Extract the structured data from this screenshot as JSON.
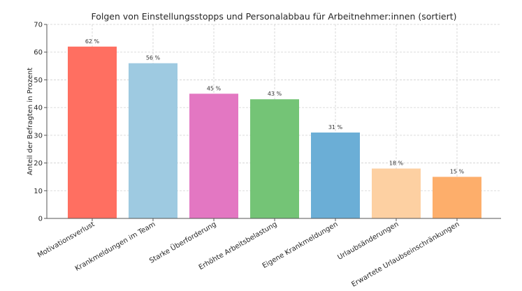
{
  "chart_data": {
    "type": "bar",
    "title": "Folgen von Einstellungsstopps und Personalabbau für Arbeitnehmer:innen (sortiert)",
    "xlabel": "",
    "ylabel": "Anteil der Befragten in Prozent",
    "ylim": [
      0,
      70
    ],
    "yticks": [
      0,
      10,
      20,
      30,
      40,
      50,
      60,
      70
    ],
    "grid": true,
    "categories": [
      "Motivationsverlust",
      "Krankmeldungen im Team",
      "Starke Überforderung",
      "Erhöhte Arbeitsbelastung",
      "Eigene Krankmeldungen",
      "Urlaubsänderungen",
      "Erwartete Urlaubseinschränkungen"
    ],
    "values": [
      62,
      56,
      45,
      43,
      31,
      18,
      15
    ],
    "data_labels": [
      "62 %",
      "56 %",
      "45 %",
      "43 %",
      "31 %",
      "18 %",
      "15 %"
    ],
    "colors": [
      "#ff6f61",
      "#9ecae1",
      "#e377c2",
      "#74c476",
      "#6baed6",
      "#fdd0a2",
      "#fdae6b"
    ]
  }
}
